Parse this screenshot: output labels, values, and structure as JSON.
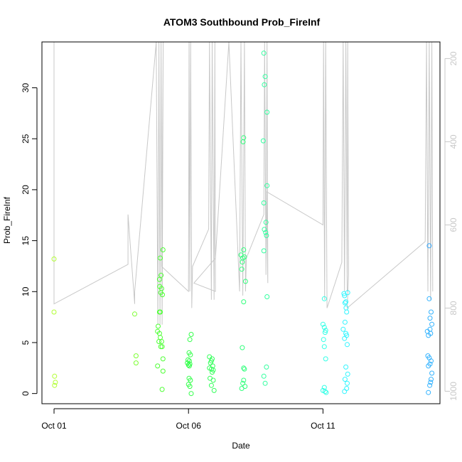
{
  "chart_data": {
    "type": "scatter",
    "title": "ATOM3 Southbound Prob_FireInf",
    "xlabel": "Date",
    "ylabel": "Prob_FireInf",
    "x_ticks": [
      "Oct 01",
      "Oct 06",
      "Oct 11"
    ],
    "x_tick_days": [
      1,
      6,
      11
    ],
    "xlim_days": [
      0.55,
      15.35
    ],
    "ylim": [
      -1,
      34.5
    ],
    "y_ticks": [
      0,
      5,
      10,
      15,
      20,
      25,
      30
    ],
    "y2_ticks": [
      200,
      400,
      600,
      800,
      1000
    ],
    "y2lim": [
      1030,
      160
    ],
    "points": [
      {
        "day": 1.0,
        "v": 13.2,
        "c": "#b2ff33"
      },
      {
        "day": 1.0,
        "v": 8.0,
        "c": "#b2ff33"
      },
      {
        "day": 1.02,
        "v": 1.7,
        "c": "#b2ff33"
      },
      {
        "day": 1.05,
        "v": 1.1,
        "c": "#b2ff33"
      },
      {
        "day": 1.02,
        "v": 0.8,
        "c": "#b2ff33"
      },
      {
        "day": 4.0,
        "v": 7.8,
        "c": "#7dff33"
      },
      {
        "day": 4.05,
        "v": 3.7,
        "c": "#7dff33"
      },
      {
        "day": 4.05,
        "v": 3.0,
        "c": "#7dff33"
      },
      {
        "day": 4.87,
        "v": 6.6,
        "c": "#4dff33"
      },
      {
        "day": 4.92,
        "v": 11.2,
        "c": "#4dff33"
      },
      {
        "day": 4.95,
        "v": 13.3,
        "c": "#4dff33"
      },
      {
        "day": 5.05,
        "v": 14.1,
        "c": "#4dff33"
      },
      {
        "day": 4.98,
        "v": 11.6,
        "c": "#4dff33"
      },
      {
        "day": 4.93,
        "v": 10.5,
        "c": "#4dff33"
      },
      {
        "day": 5.0,
        "v": 10.3,
        "c": "#4dff33"
      },
      {
        "day": 4.97,
        "v": 9.9,
        "c": "#4dff33"
      },
      {
        "day": 5.03,
        "v": 9.7,
        "c": "#4dff33"
      },
      {
        "day": 4.92,
        "v": 8.0,
        "c": "#4dff33"
      },
      {
        "day": 4.95,
        "v": 8.0,
        "c": "#4dff33"
      },
      {
        "day": 4.85,
        "v": 6.1,
        "c": "#4dff33"
      },
      {
        "day": 4.92,
        "v": 5.9,
        "c": "#4dff33"
      },
      {
        "day": 4.95,
        "v": 5.5,
        "c": "#4dff33"
      },
      {
        "day": 4.9,
        "v": 5.1,
        "c": "#4dff33"
      },
      {
        "day": 5.0,
        "v": 5.1,
        "c": "#4dff33"
      },
      {
        "day": 4.97,
        "v": 4.6,
        "c": "#4dff33"
      },
      {
        "day": 5.02,
        "v": 4.6,
        "c": "#4dff33"
      },
      {
        "day": 5.05,
        "v": 3.4,
        "c": "#4dff33"
      },
      {
        "day": 4.85,
        "v": 2.7,
        "c": "#4dff33"
      },
      {
        "day": 5.05,
        "v": 2.2,
        "c": "#4dff33"
      },
      {
        "day": 5.02,
        "v": 0.4,
        "c": "#4dff33"
      },
      {
        "day": 6.1,
        "v": 5.8,
        "c": "#33ff4a"
      },
      {
        "day": 6.05,
        "v": 5.3,
        "c": "#33ff4a"
      },
      {
        "day": 6.02,
        "v": 4.0,
        "c": "#33ff4a"
      },
      {
        "day": 6.07,
        "v": 3.8,
        "c": "#33ff4a"
      },
      {
        "day": 5.98,
        "v": 3.3,
        "c": "#33ff4a"
      },
      {
        "day": 6.03,
        "v": 3.2,
        "c": "#33ff4a"
      },
      {
        "day": 5.96,
        "v": 3.0,
        "c": "#33ff4a"
      },
      {
        "day": 6.05,
        "v": 2.9,
        "c": "#33ff4a"
      },
      {
        "day": 6.0,
        "v": 2.8,
        "c": "#33ff4a"
      },
      {
        "day": 6.03,
        "v": 2.7,
        "c": "#33ff4a"
      },
      {
        "day": 6.02,
        "v": 1.5,
        "c": "#33ff4a"
      },
      {
        "day": 6.07,
        "v": 1.3,
        "c": "#33ff4a"
      },
      {
        "day": 6.0,
        "v": 0.9,
        "c": "#33ff4a"
      },
      {
        "day": 6.05,
        "v": 0.7,
        "c": "#33ff4a"
      },
      {
        "day": 6.1,
        "v": 0.0,
        "c": "#33ff4a"
      },
      {
        "day": 6.78,
        "v": 3.6,
        "c": "#33ff5a"
      },
      {
        "day": 6.88,
        "v": 3.4,
        "c": "#33ff5a"
      },
      {
        "day": 6.85,
        "v": 3.2,
        "c": "#33ff5a"
      },
      {
        "day": 6.82,
        "v": 3.0,
        "c": "#33ff5a"
      },
      {
        "day": 6.9,
        "v": 2.7,
        "c": "#33ff5a"
      },
      {
        "day": 6.78,
        "v": 2.5,
        "c": "#33ff5a"
      },
      {
        "day": 6.85,
        "v": 2.4,
        "c": "#33ff5a"
      },
      {
        "day": 6.92,
        "v": 2.3,
        "c": "#33ff5a"
      },
      {
        "day": 6.88,
        "v": 2.1,
        "c": "#33ff5a"
      },
      {
        "day": 6.8,
        "v": 1.5,
        "c": "#33ff5a"
      },
      {
        "day": 6.92,
        "v": 1.3,
        "c": "#33ff5a"
      },
      {
        "day": 6.85,
        "v": 0.8,
        "c": "#33ff5a"
      },
      {
        "day": 6.95,
        "v": 0.3,
        "c": "#33ff5a"
      },
      {
        "day": 8.05,
        "v": 25.1,
        "c": "#33ff7d"
      },
      {
        "day": 8.03,
        "v": 24.7,
        "c": "#33ff7d"
      },
      {
        "day": 8.05,
        "v": 14.1,
        "c": "#33ff7d"
      },
      {
        "day": 7.95,
        "v": 13.6,
        "c": "#33ff7d"
      },
      {
        "day": 8.02,
        "v": 13.3,
        "c": "#33ff7d"
      },
      {
        "day": 8.08,
        "v": 13.4,
        "c": "#33ff7d"
      },
      {
        "day": 8.0,
        "v": 12.9,
        "c": "#33ff7d"
      },
      {
        "day": 7.98,
        "v": 12.2,
        "c": "#33ff7d"
      },
      {
        "day": 8.12,
        "v": 11.0,
        "c": "#33ff7d"
      },
      {
        "day": 8.05,
        "v": 9.0,
        "c": "#33ff7d"
      },
      {
        "day": 8.0,
        "v": 4.5,
        "c": "#33ff7d"
      },
      {
        "day": 8.05,
        "v": 2.5,
        "c": "#33ff7d"
      },
      {
        "day": 8.08,
        "v": 2.4,
        "c": "#33ff7d"
      },
      {
        "day": 8.05,
        "v": 1.3,
        "c": "#33ff7d"
      },
      {
        "day": 8.02,
        "v": 1.0,
        "c": "#33ff7d"
      },
      {
        "day": 8.1,
        "v": 0.7,
        "c": "#33ff7d"
      },
      {
        "day": 7.98,
        "v": 0.5,
        "c": "#33ff7d"
      },
      {
        "day": 8.8,
        "v": 33.4,
        "c": "#33ffa0"
      },
      {
        "day": 8.85,
        "v": 31.1,
        "c": "#33ffa0"
      },
      {
        "day": 8.82,
        "v": 30.3,
        "c": "#33ffa0"
      },
      {
        "day": 8.92,
        "v": 27.6,
        "c": "#33ffa0"
      },
      {
        "day": 8.78,
        "v": 24.8,
        "c": "#33ffa0"
      },
      {
        "day": 8.92,
        "v": 20.4,
        "c": "#33ffa0"
      },
      {
        "day": 8.8,
        "v": 18.7,
        "c": "#33ffa0"
      },
      {
        "day": 8.88,
        "v": 16.8,
        "c": "#33ffa0"
      },
      {
        "day": 8.82,
        "v": 16.1,
        "c": "#33ffa0"
      },
      {
        "day": 8.87,
        "v": 15.8,
        "c": "#33ffa0"
      },
      {
        "day": 8.9,
        "v": 15.5,
        "c": "#33ffa0"
      },
      {
        "day": 8.8,
        "v": 14.0,
        "c": "#33ffa0"
      },
      {
        "day": 8.92,
        "v": 9.5,
        "c": "#33ffa0"
      },
      {
        "day": 8.9,
        "v": 2.6,
        "c": "#33ffa0"
      },
      {
        "day": 8.8,
        "v": 1.7,
        "c": "#33ffa0"
      },
      {
        "day": 8.85,
        "v": 1.0,
        "c": "#33ffa0"
      },
      {
        "day": 11.05,
        "v": 9.3,
        "c": "#33ffe6"
      },
      {
        "day": 11.0,
        "v": 6.8,
        "c": "#33ffe6"
      },
      {
        "day": 11.05,
        "v": 6.5,
        "c": "#33ffe6"
      },
      {
        "day": 11.1,
        "v": 6.2,
        "c": "#33ffe6"
      },
      {
        "day": 11.08,
        "v": 6.0,
        "c": "#33ffe6"
      },
      {
        "day": 11.02,
        "v": 5.3,
        "c": "#33ffe6"
      },
      {
        "day": 11.05,
        "v": 4.6,
        "c": "#33ffe6"
      },
      {
        "day": 11.1,
        "v": 3.4,
        "c": "#33ffe6"
      },
      {
        "day": 11.05,
        "v": 0.6,
        "c": "#33ffe6"
      },
      {
        "day": 11.0,
        "v": 0.3,
        "c": "#33ffe6"
      },
      {
        "day": 11.08,
        "v": 0.2,
        "c": "#33ffe6"
      },
      {
        "day": 11.12,
        "v": 0.1,
        "c": "#33ffe6"
      },
      {
        "day": 11.78,
        "v": 9.8,
        "c": "#33f5ff"
      },
      {
        "day": 11.92,
        "v": 9.9,
        "c": "#33f5ff"
      },
      {
        "day": 11.8,
        "v": 9.6,
        "c": "#33f5ff"
      },
      {
        "day": 11.85,
        "v": 9.0,
        "c": "#33f5ff"
      },
      {
        "day": 11.82,
        "v": 8.9,
        "c": "#33f5ff"
      },
      {
        "day": 11.86,
        "v": 8.4,
        "c": "#33f5ff"
      },
      {
        "day": 11.88,
        "v": 8.0,
        "c": "#33f5ff"
      },
      {
        "day": 11.82,
        "v": 7.0,
        "c": "#33f5ff"
      },
      {
        "day": 11.75,
        "v": 6.3,
        "c": "#33f5ff"
      },
      {
        "day": 11.85,
        "v": 5.9,
        "c": "#33f5ff"
      },
      {
        "day": 11.88,
        "v": 5.7,
        "c": "#33f5ff"
      },
      {
        "day": 11.8,
        "v": 5.4,
        "c": "#33f5ff"
      },
      {
        "day": 11.9,
        "v": 4.8,
        "c": "#33f5ff"
      },
      {
        "day": 11.85,
        "v": 2.6,
        "c": "#33f5ff"
      },
      {
        "day": 11.92,
        "v": 1.9,
        "c": "#33f5ff"
      },
      {
        "day": 11.82,
        "v": 1.4,
        "c": "#33f5ff"
      },
      {
        "day": 11.9,
        "v": 1.0,
        "c": "#33f5ff"
      },
      {
        "day": 11.88,
        "v": 0.5,
        "c": "#33f5ff"
      },
      {
        "day": 11.8,
        "v": 0.2,
        "c": "#33f5ff"
      },
      {
        "day": 14.95,
        "v": 14.5,
        "c": "#33a8ff"
      },
      {
        "day": 14.95,
        "v": 9.3,
        "c": "#33b3ff"
      },
      {
        "day": 15.02,
        "v": 8.0,
        "c": "#33b3ff"
      },
      {
        "day": 14.98,
        "v": 7.4,
        "c": "#33b3ff"
      },
      {
        "day": 15.05,
        "v": 6.8,
        "c": "#33b3ff"
      },
      {
        "day": 14.98,
        "v": 6.3,
        "c": "#33b3ff"
      },
      {
        "day": 14.88,
        "v": 6.1,
        "c": "#33b3ff"
      },
      {
        "day": 14.92,
        "v": 5.7,
        "c": "#33b3ff"
      },
      {
        "day": 15.0,
        "v": 5.9,
        "c": "#33b3ff"
      },
      {
        "day": 14.9,
        "v": 3.7,
        "c": "#33b3ff"
      },
      {
        "day": 14.95,
        "v": 3.5,
        "c": "#33b3ff"
      },
      {
        "day": 15.02,
        "v": 3.2,
        "c": "#33b3ff"
      },
      {
        "day": 14.98,
        "v": 2.9,
        "c": "#33b3ff"
      },
      {
        "day": 14.92,
        "v": 2.7,
        "c": "#33b3ff"
      },
      {
        "day": 15.05,
        "v": 2.0,
        "c": "#33b3ff"
      },
      {
        "day": 15.02,
        "v": 1.4,
        "c": "#33b3ff"
      },
      {
        "day": 15.0,
        "v": 1.1,
        "c": "#33b3ff"
      },
      {
        "day": 14.97,
        "v": 0.8,
        "c": "#33b3ff"
      },
      {
        "day": 14.92,
        "v": 0.1,
        "c": "#33b3ff"
      }
    ],
    "profile_color": "#c8c8c8",
    "profile_series": [
      {
        "day": 1.0,
        "p": 160
      },
      {
        "day": 1.0,
        "p": 790
      },
      {
        "day": 3.75,
        "p": 695
      },
      {
        "day": 3.75,
        "p": 575
      },
      {
        "day": 4.0,
        "p": 790
      },
      {
        "day": 4.0,
        "p": 760
      },
      {
        "day": 4.8,
        "p": 160
      },
      {
        "day": 4.86,
        "p": 840
      },
      {
        "day": 4.9,
        "p": 160
      },
      {
        "day": 4.94,
        "p": 840
      },
      {
        "day": 4.98,
        "p": 160
      },
      {
        "day": 5.02,
        "p": 840
      },
      {
        "day": 5.06,
        "p": 160
      },
      {
        "day": 5.0,
        "p": 700
      },
      {
        "day": 6.0,
        "p": 760
      },
      {
        "day": 6.02,
        "p": 160
      },
      {
        "day": 6.05,
        "p": 760
      },
      {
        "day": 6.08,
        "p": 160
      },
      {
        "day": 6.12,
        "p": 800
      },
      {
        "day": 6.15,
        "p": 700
      },
      {
        "day": 6.75,
        "p": 610
      },
      {
        "day": 6.78,
        "p": 160
      },
      {
        "day": 6.85,
        "p": 780
      },
      {
        "day": 6.88,
        "p": 160
      },
      {
        "day": 6.95,
        "p": 780
      },
      {
        "day": 6.98,
        "p": 160
      },
      {
        "day": 7.0,
        "p": 760
      },
      {
        "day": 6.2,
        "p": 740
      },
      {
        "day": 7.0,
        "p": 680
      },
      {
        "day": 7.5,
        "p": 160
      },
      {
        "day": 7.9,
        "p": 760
      },
      {
        "day": 7.95,
        "p": 160
      },
      {
        "day": 8.02,
        "p": 770
      },
      {
        "day": 8.08,
        "p": 160
      },
      {
        "day": 8.12,
        "p": 760
      },
      {
        "day": 8.15,
        "p": 680
      },
      {
        "day": 8.8,
        "p": 575
      },
      {
        "day": 8.83,
        "p": 160
      },
      {
        "day": 8.88,
        "p": 720
      },
      {
        "day": 8.92,
        "p": 160
      },
      {
        "day": 8.95,
        "p": 740
      },
      {
        "day": 8.9,
        "p": 520
      },
      {
        "day": 11.0,
        "p": 600
      },
      {
        "day": 11.02,
        "p": 160
      },
      {
        "day": 11.06,
        "p": 780
      },
      {
        "day": 11.1,
        "p": 160
      },
      {
        "day": 11.15,
        "p": 800
      },
      {
        "day": 11.7,
        "p": 690
      },
      {
        "day": 11.75,
        "p": 160
      },
      {
        "day": 11.8,
        "p": 760
      },
      {
        "day": 11.85,
        "p": 160
      },
      {
        "day": 11.9,
        "p": 760
      },
      {
        "day": 11.92,
        "p": 160
      },
      {
        "day": 11.95,
        "p": 720
      },
      {
        "day": 11.9,
        "p": 800
      },
      {
        "day": 14.8,
        "p": 640
      },
      {
        "day": 14.85,
        "p": 160
      },
      {
        "day": 14.9,
        "p": 760
      },
      {
        "day": 14.95,
        "p": 160
      },
      {
        "day": 15.0,
        "p": 780
      },
      {
        "day": 15.05,
        "p": 160
      },
      {
        "day": 15.08,
        "p": 760
      }
    ]
  }
}
